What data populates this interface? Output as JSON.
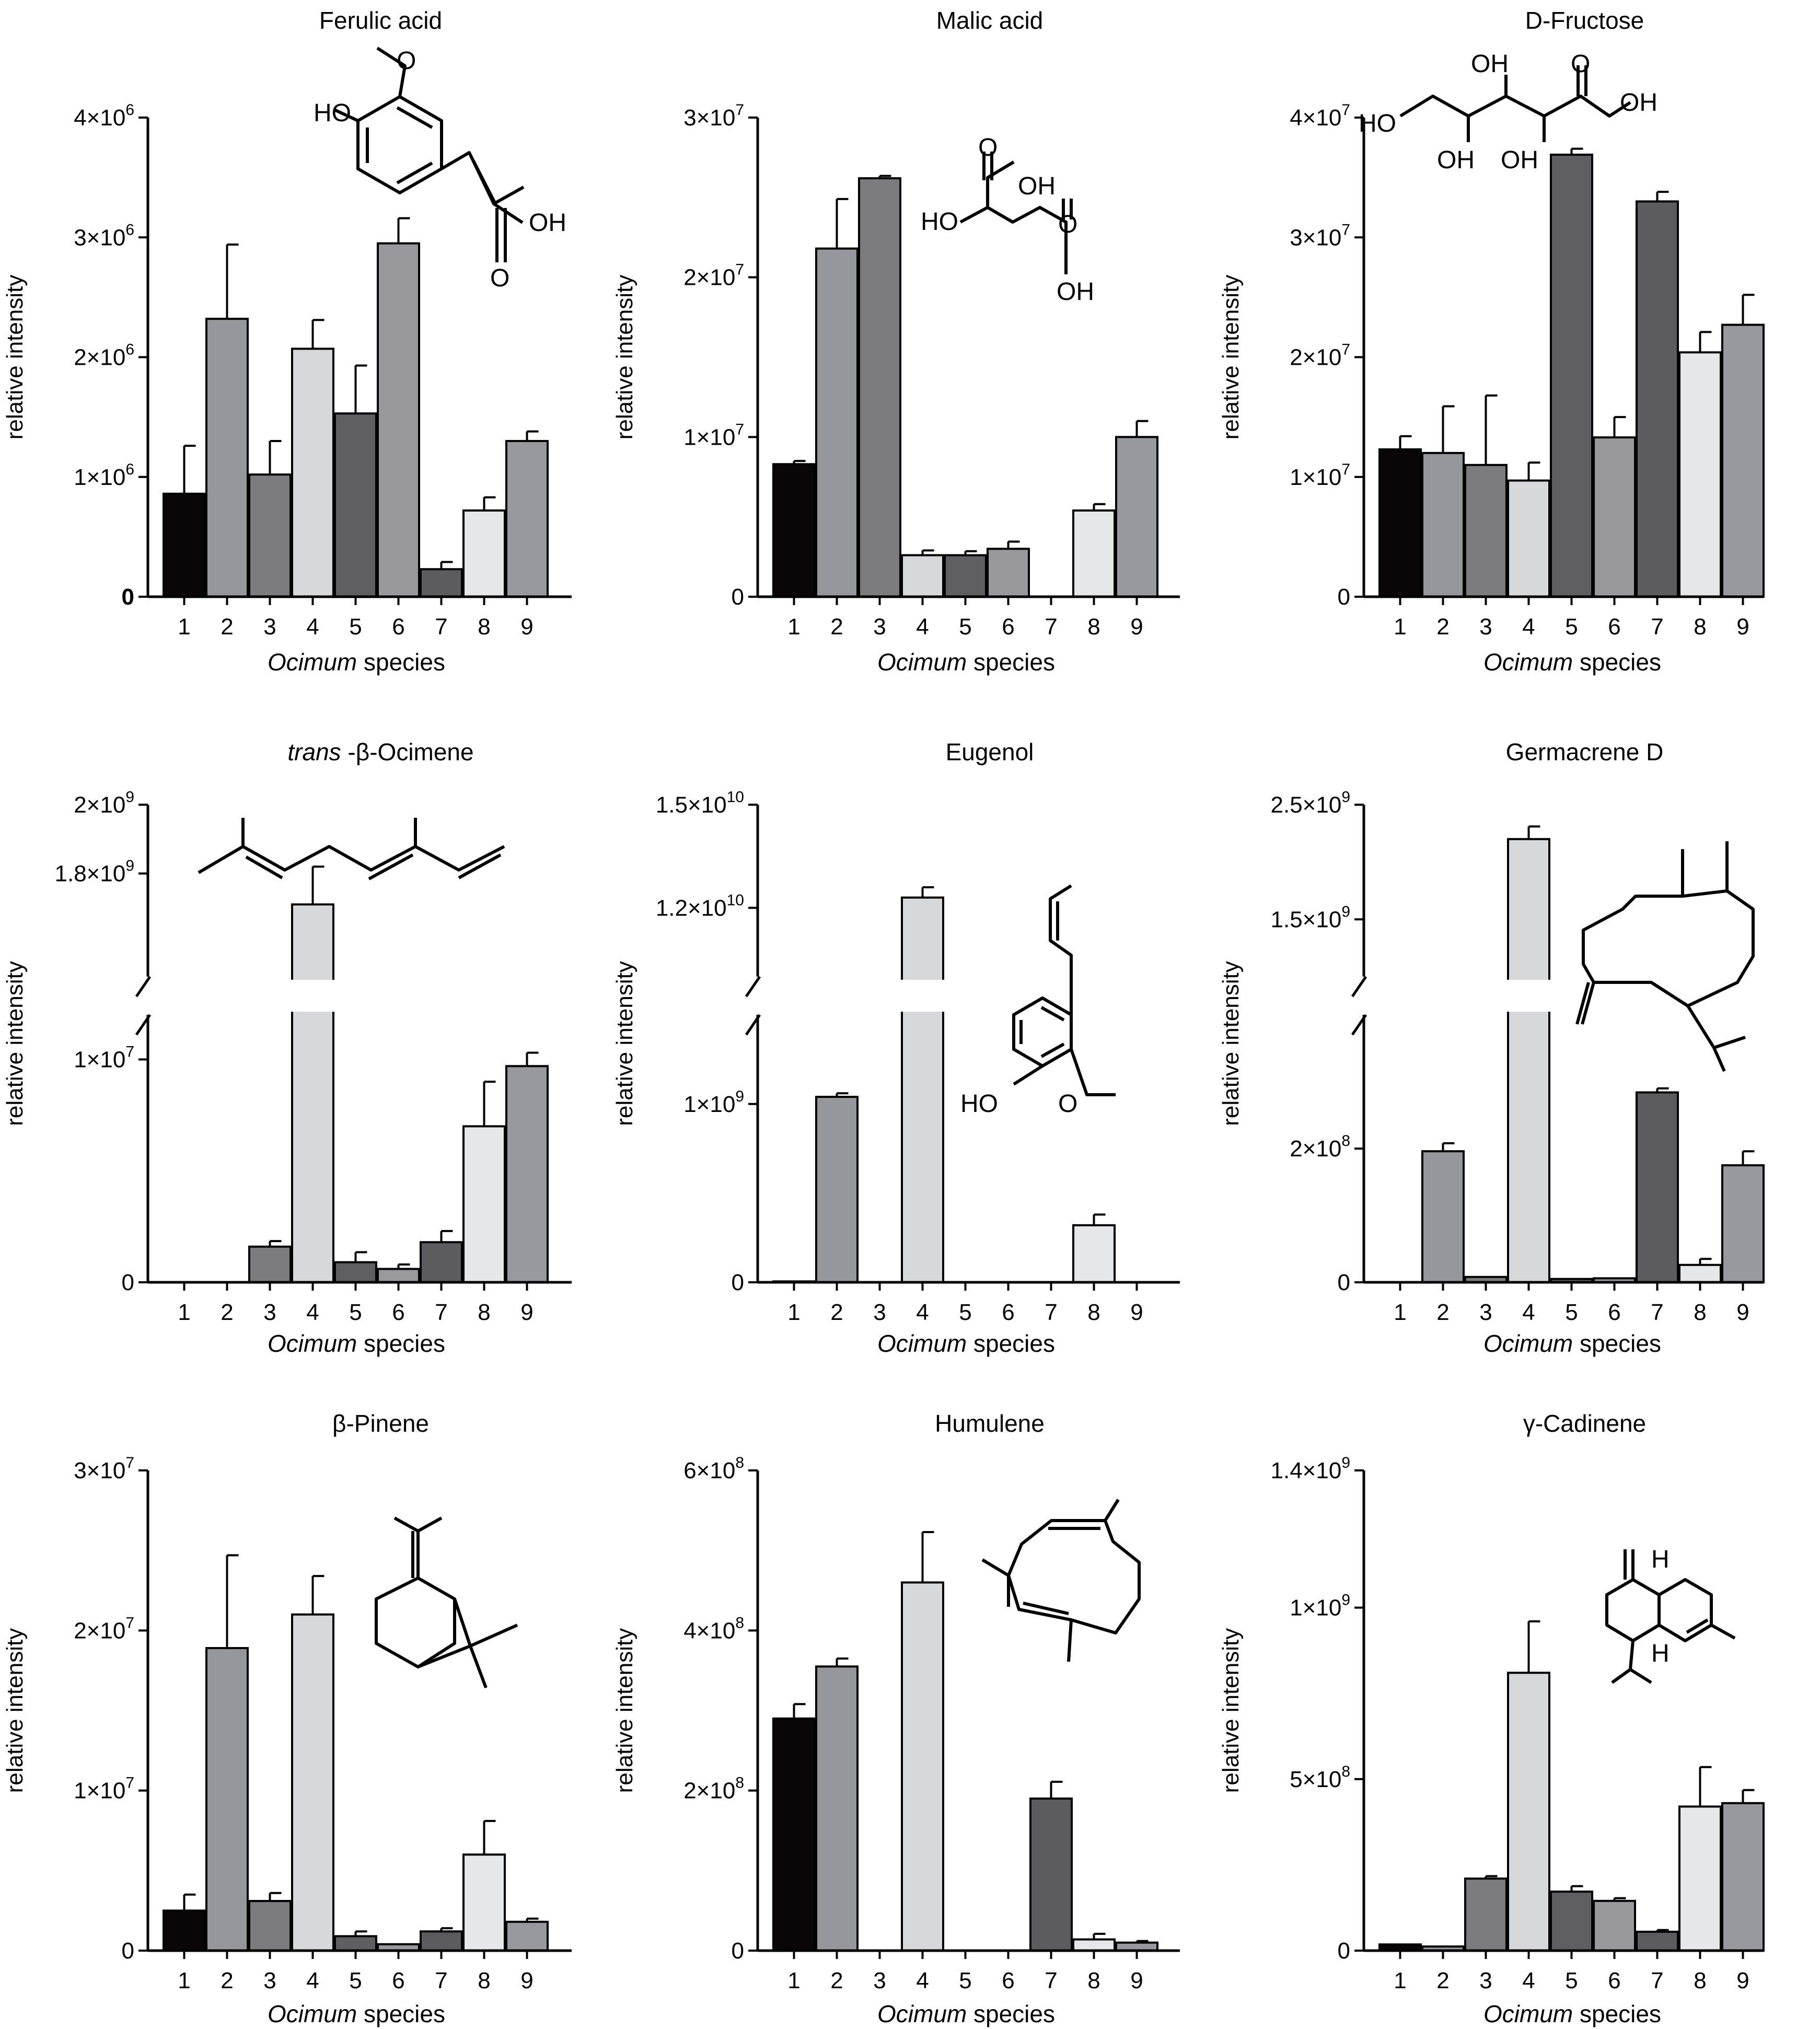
{
  "figure": {
    "x_label_italic": "Ocimum",
    "x_label_rest": " species",
    "y_label": "relative intensity"
  },
  "colors": {
    "bars": [
      "#0a0607",
      "#96979c",
      "#7c7c7e",
      "#d7d8da",
      "#5f5f61",
      "#98989d",
      "#5c5c5e",
      "#e6e7e8",
      "#98999e"
    ],
    "outline": "#000000",
    "background": "#ffffff"
  },
  "chart_data": [
    {
      "type": "bar",
      "title": "Ferulic acid",
      "molecule": "ferulic-acid",
      "categories": [
        "1",
        "2",
        "3",
        "4",
        "5",
        "6",
        "7",
        "8",
        "9"
      ],
      "values": [
        860000,
        2320000,
        1020000,
        2070000,
        1530000,
        2950000,
        230000,
        720000,
        1300000
      ],
      "errors": [
        400000,
        620000,
        280000,
        240000,
        400000,
        210000,
        60000,
        110000,
        80000
      ],
      "ylim": [
        0,
        4000000
      ],
      "yticks": [
        {
          "v": 0,
          "label": "0",
          "bold": true
        },
        {
          "v": 1000000,
          "m": "1×10",
          "e": "6"
        },
        {
          "v": 2000000,
          "m": "2×10",
          "e": "6"
        },
        {
          "v": 3000000,
          "m": "3×10",
          "e": "6"
        },
        {
          "v": 4000000,
          "m": "4×10",
          "e": "6"
        }
      ]
    },
    {
      "type": "bar",
      "title": "Malic acid",
      "molecule": "malic-acid",
      "categories": [
        "1",
        "2",
        "3",
        "4",
        "5",
        "6",
        "7",
        "8",
        "9"
      ],
      "values": [
        8300000,
        21800000,
        26200000,
        2600000,
        2600000,
        3000000,
        0,
        5400000,
        10000000
      ],
      "errors": [
        200000,
        3100000,
        150000,
        300000,
        250000,
        450000,
        0,
        400000,
        1000000
      ],
      "ylim": [
        0,
        30000000
      ],
      "yticks": [
        {
          "v": 0,
          "label": "0"
        },
        {
          "v": 10000000,
          "m": "1×10",
          "e": "7"
        },
        {
          "v": 20000000,
          "m": "2×10",
          "e": "7"
        },
        {
          "v": 30000000,
          "m": "3×10",
          "e": "7"
        }
      ]
    },
    {
      "type": "bar",
      "title": "D-Fructose",
      "molecule": "fructose",
      "categories": [
        "1",
        "2",
        "3",
        "4",
        "5",
        "6",
        "7",
        "8",
        "9"
      ],
      "values": [
        12300000,
        12000000,
        11000000,
        9700000,
        36900000,
        13300000,
        33000000,
        20400000,
        22700000
      ],
      "errors": [
        1100000,
        3900000,
        5800000,
        1500000,
        500000,
        1700000,
        800000,
        1700000,
        2500000
      ],
      "ylim": [
        0,
        40000000
      ],
      "yticks": [
        {
          "v": 0,
          "label": "0"
        },
        {
          "v": 10000000,
          "m": "1×10",
          "e": "7"
        },
        {
          "v": 20000000,
          "m": "2×10",
          "e": "7"
        },
        {
          "v": 30000000,
          "m": "3×10",
          "e": "7"
        },
        {
          "v": 40000000,
          "m": "4×10",
          "e": "7"
        }
      ]
    },
    {
      "type": "bar",
      "title_italic": "trans",
      "title": " -β-Ocimene",
      "molecule": "ocimene",
      "categories": [
        "1",
        "2",
        "3",
        "4",
        "5",
        "6",
        "7",
        "8",
        "9"
      ],
      "values": [
        0,
        0,
        1600000,
        1710000000,
        900000,
        600000,
        1800000,
        7000000,
        9700000
      ],
      "errors": [
        0,
        0,
        250000,
        110000000,
        450000,
        200000,
        500000,
        2000000,
        600000
      ],
      "broken_axis": {
        "lower": [
          0,
          12000000
        ],
        "upper": [
          1500000000,
          2000000000
        ]
      },
      "yticks": [
        {
          "v": 0,
          "label": "0"
        },
        {
          "v": 10000000,
          "m": "1×10",
          "e": "7"
        },
        {
          "v": 1800000000,
          "m": "1.8×10",
          "e": "9"
        },
        {
          "v": 2000000000,
          "m": "2×10",
          "e": "9"
        }
      ]
    },
    {
      "type": "bar",
      "title": "Eugenol",
      "molecule": "eugenol",
      "categories": [
        "1",
        "2",
        "3",
        "4",
        "5",
        "6",
        "7",
        "8",
        "9"
      ],
      "values": [
        5000000,
        1040000000,
        0,
        12300000000,
        0,
        0,
        0,
        320000000,
        0
      ],
      "errors": [
        0,
        20000000,
        0,
        300000000,
        0,
        0,
        0,
        60000000,
        0
      ],
      "broken_axis": {
        "lower": [
          0,
          1500000000
        ],
        "upper": [
          10000000000,
          15000000000
        ]
      },
      "yticks": [
        {
          "v": 0,
          "label": "0"
        },
        {
          "v": 1000000000,
          "m": "1×10",
          "e": "9"
        },
        {
          "v": 12000000000,
          "m": "1.2×10",
          "e": "10"
        },
        {
          "v": 15000000000,
          "m": "1.5×10",
          "e": "10"
        }
      ]
    },
    {
      "type": "bar",
      "title": "Germacrene D",
      "molecule": "germacrene",
      "categories": [
        "1",
        "2",
        "3",
        "4",
        "5",
        "6",
        "7",
        "8",
        "9"
      ],
      "values": [
        0,
        196000000,
        8000000,
        2200000000,
        5000000,
        6000000,
        284000000,
        26000000,
        175000000
      ],
      "errors": [
        0,
        12000000,
        0,
        110000000,
        0,
        0,
        6000000,
        9000000,
        21000000
      ],
      "broken_axis": {
        "lower": [
          0,
          400000000
        ],
        "upper": [
          1000000000,
          2500000000
        ]
      },
      "yticks": [
        {
          "v": 0,
          "label": "0"
        },
        {
          "v": 200000000,
          "m": "2×10",
          "e": "8"
        },
        {
          "v": 1500000000,
          "m": "1.5×10",
          "e": "9"
        },
        {
          "v": 2500000000,
          "m": "2.5×10",
          "e": "9"
        }
      ]
    },
    {
      "type": "bar",
      "title": "β-Pinene",
      "molecule": "pinene",
      "categories": [
        "1",
        "2",
        "3",
        "4",
        "5",
        "6",
        "7",
        "8",
        "9"
      ],
      "values": [
        2500000,
        18900000,
        3100000,
        21000000,
        900000,
        400000,
        1200000,
        6000000,
        1800000
      ],
      "errors": [
        1000000,
        5800000,
        500000,
        2400000,
        300000,
        0,
        200000,
        2100000,
        200000
      ],
      "ylim": [
        0,
        30000000
      ],
      "yticks": [
        {
          "v": 0,
          "label": "0"
        },
        {
          "v": 10000000,
          "m": "1×10",
          "e": "7"
        },
        {
          "v": 20000000,
          "m": "2×10",
          "e": "7"
        },
        {
          "v": 30000000,
          "m": "3×10",
          "e": "7"
        }
      ]
    },
    {
      "type": "bar",
      "title": "Humulene",
      "molecule": "humulene",
      "categories": [
        "1",
        "2",
        "3",
        "4",
        "5",
        "6",
        "7",
        "8",
        "9"
      ],
      "values": [
        290000000,
        355000000,
        0,
        460000000,
        0,
        0,
        190000000,
        14000000,
        10000000
      ],
      "errors": [
        18000000,
        10000000,
        0,
        63000000,
        0,
        0,
        21000000,
        7000000,
        2000000
      ],
      "ylim": [
        0,
        600000000
      ],
      "yticks": [
        {
          "v": 0,
          "label": "0"
        },
        {
          "v": 200000000,
          "m": "2×10",
          "e": "8"
        },
        {
          "v": 400000000,
          "m": "4×10",
          "e": "8"
        },
        {
          "v": 600000000,
          "m": "6×10",
          "e": "8"
        }
      ]
    },
    {
      "type": "bar",
      "title": "γ-Cadinene",
      "molecule": "cadinene",
      "categories": [
        "1",
        "2",
        "3",
        "4",
        "5",
        "6",
        "7",
        "8",
        "9"
      ],
      "values": [
        18000000,
        12000000,
        210000000,
        810000000,
        172000000,
        145000000,
        55000000,
        420000000,
        430000000
      ],
      "errors": [
        0,
        0,
        7000000,
        150000000,
        16000000,
        8000000,
        5000000,
        115000000,
        38000000
      ],
      "ylim": [
        0,
        1400000000
      ],
      "yticks": [
        {
          "v": 0,
          "label": "0"
        },
        {
          "v": 500000000,
          "m": "5×10",
          "e": "8"
        },
        {
          "v": 1000000000,
          "m": "1×10",
          "e": "9"
        },
        {
          "v": 1400000000,
          "m": "1.4×10",
          "e": "9"
        }
      ]
    }
  ],
  "structure_labels": {
    "ferulic": {
      "ho": "HO",
      "oh": "OH",
      "o": "O"
    },
    "malic": {
      "ho": "HO",
      "oh1": "OH",
      "oh2": "OH",
      "o1": "O",
      "o2": "O"
    },
    "fructose": {
      "ho": "HO",
      "oh_top1": "OH",
      "o": "O",
      "oh_right": "OH",
      "oh_bot1": "OH",
      "oh_bot2": "OH"
    },
    "eugenol": {
      "ho": "HO",
      "o": "O"
    },
    "cadinene": {
      "h1": "H",
      "h2": "H"
    }
  }
}
